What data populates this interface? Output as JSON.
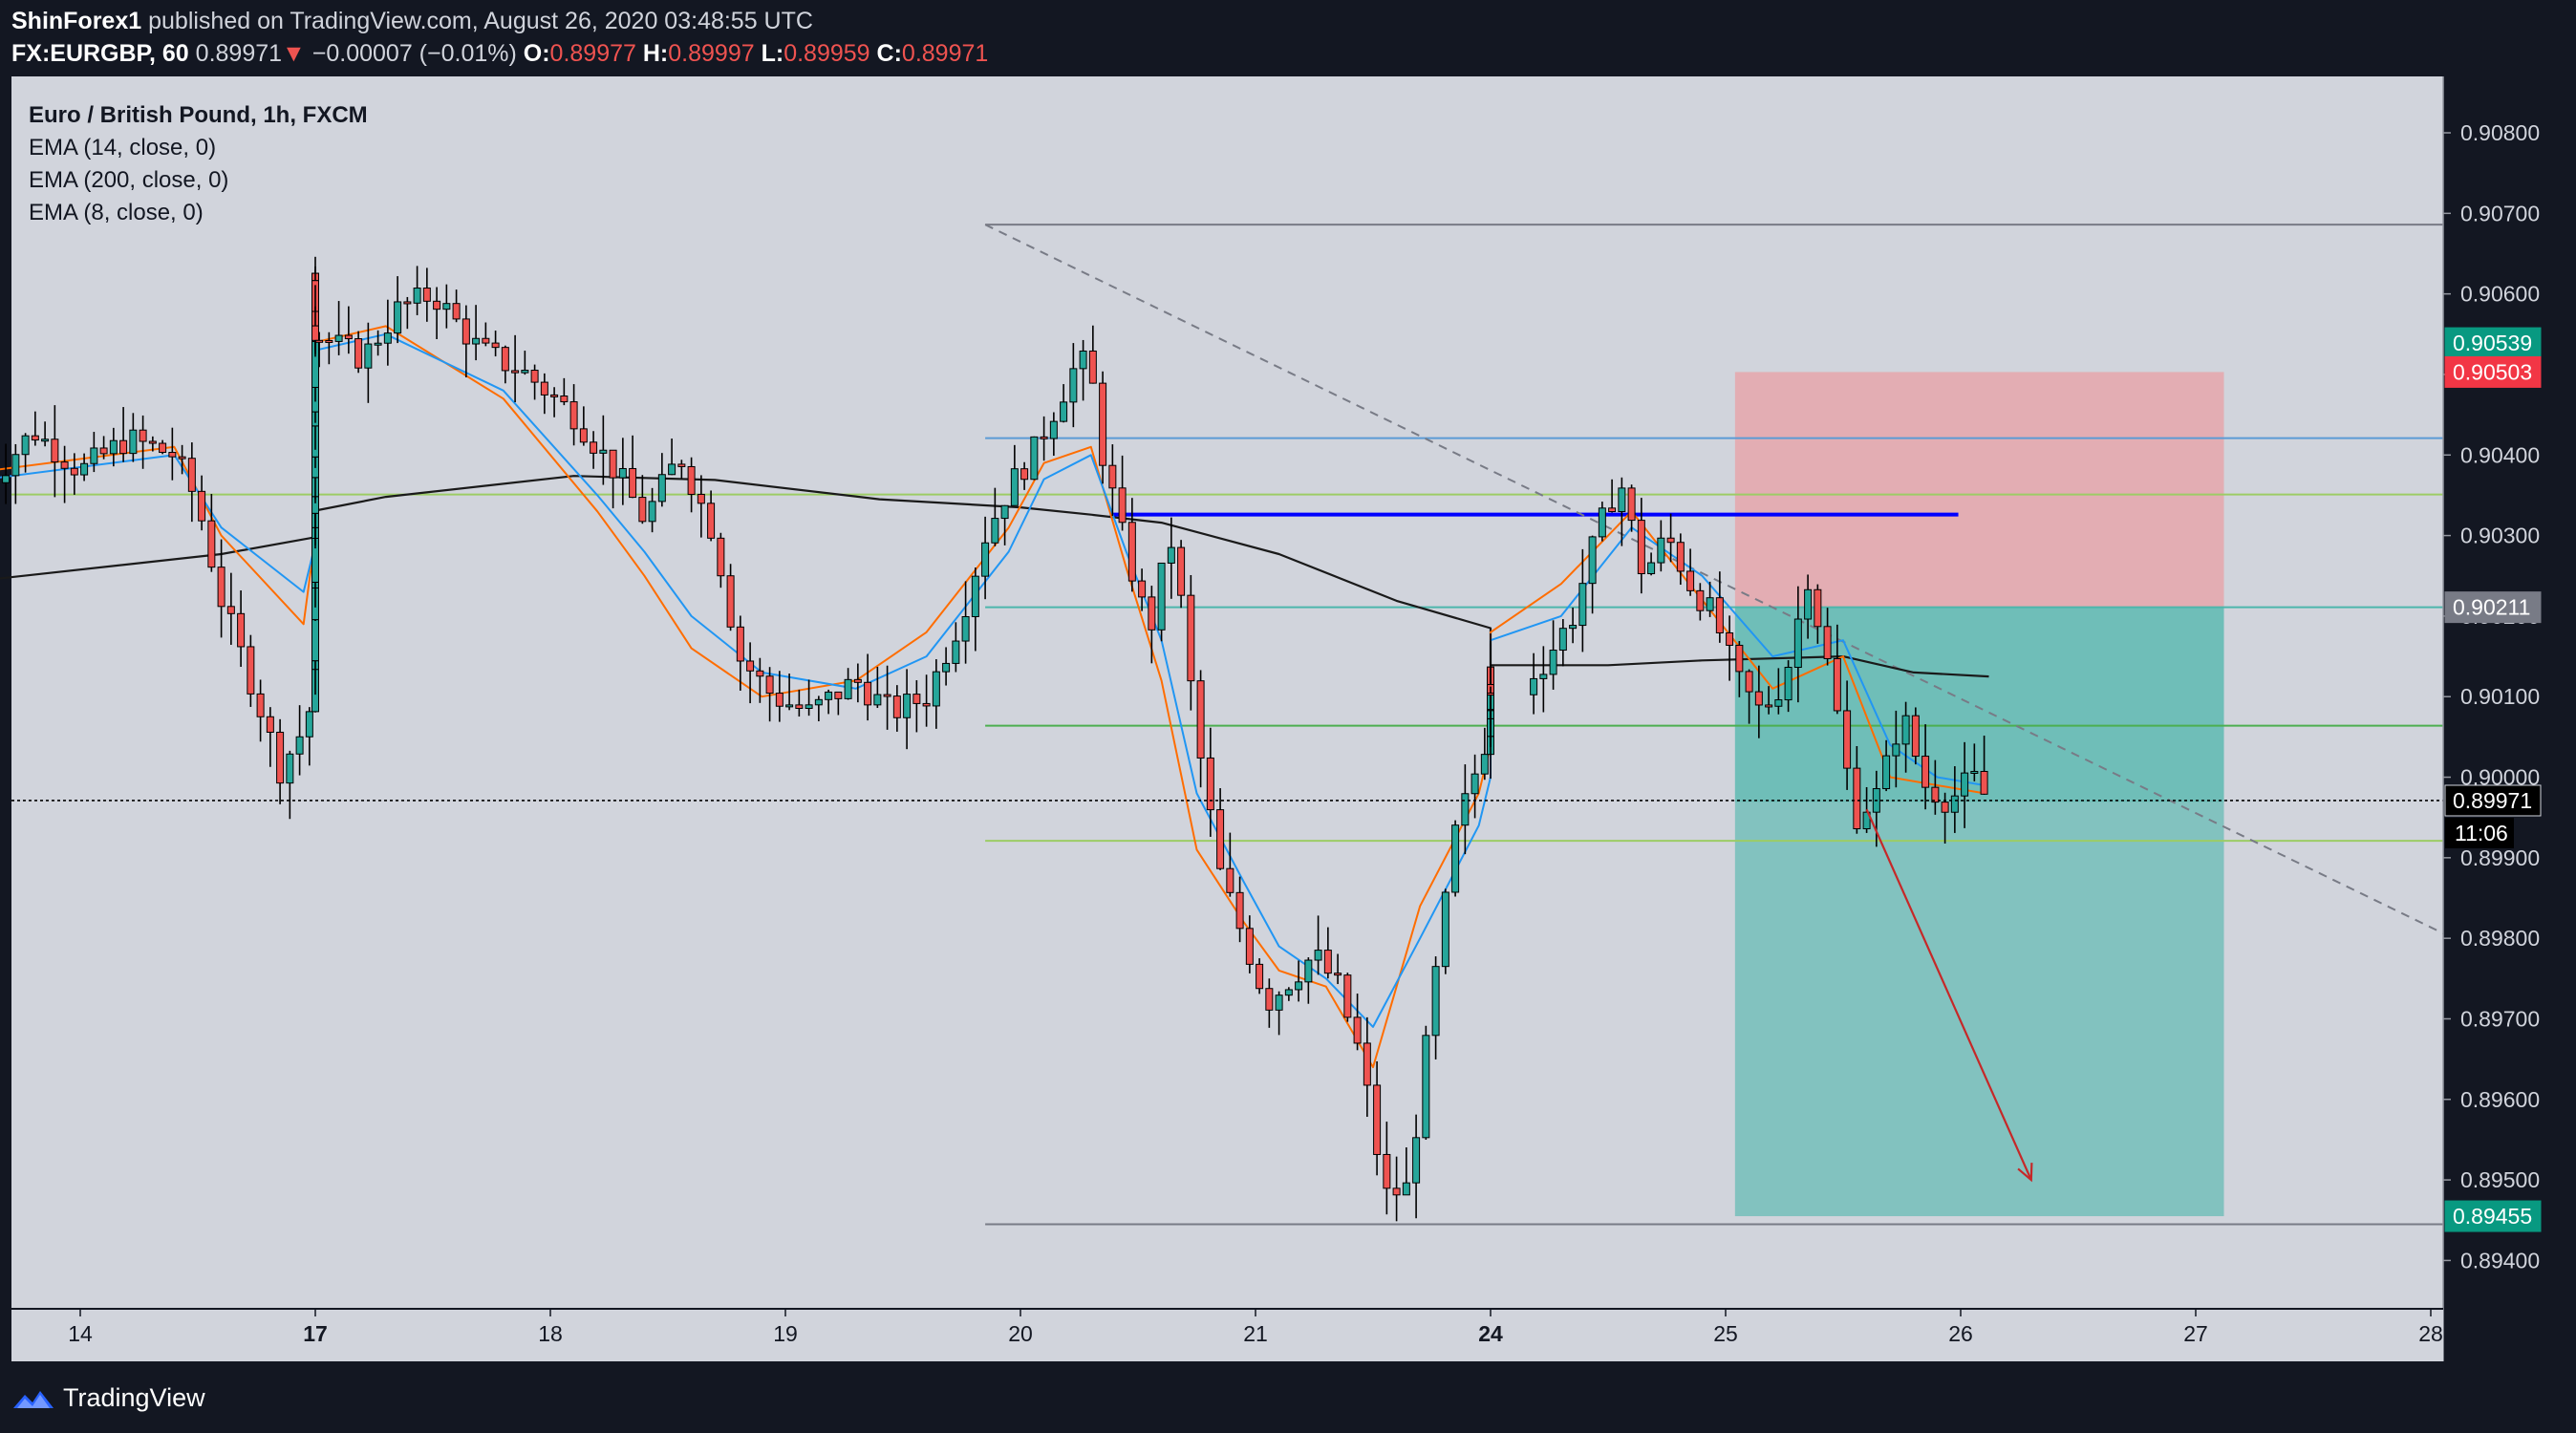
{
  "header": {
    "author": "ShinForex1",
    "published_text": " published on TradingView.com, August 26, 2020 03:48:55 UTC",
    "symbol": "FX:EURGBP, 60",
    "last": "0.89971",
    "arrow": "▼",
    "change": "−0.00007 (−0.01%)",
    "o_label": "O:",
    "o_value": "0.89977",
    "h_label": "H:",
    "h_value": "0.89997",
    "l_label": "L:",
    "l_value": "0.89959",
    "c_label": "C:",
    "c_value": "0.89971"
  },
  "legend": {
    "title": "Euro / British Pound, 1h, FXCM",
    "ind1": "EMA (14, close, 0)",
    "ind2": "EMA (200, close, 0)",
    "ind3": "EMA (8, close, 0)"
  },
  "footer": {
    "brand": "TradingView"
  },
  "colors": {
    "background": "#d1d4dc",
    "up": "#26a69a",
    "down": "#ef5350",
    "ema14": "#2196f3",
    "ema8": "#ff6d00",
    "ema200": "#1a1a1a",
    "stop_zone": "#e8a0a5",
    "target_zone": "#4db6ac",
    "blue_level": "#0000ff",
    "arrow": "#c62828"
  },
  "chart_data": {
    "type": "candlestick",
    "symbol": "EURGBP",
    "timeframe": "1h",
    "y_ticks": [
      0.908,
      0.907,
      0.906,
      0.905,
      0.904,
      0.903,
      0.902,
      0.901,
      0.9,
      0.899,
      0.898,
      0.897,
      0.896,
      0.895,
      0.894
    ],
    "y_tick_labels": [
      "0.90800",
      "0.90700",
      "0.90600",
      "0.90500",
      "0.90400",
      "0.90300",
      "0.90200",
      "0.90100",
      "0.90000",
      "0.89900",
      "0.89800",
      "0.89700",
      "0.89600",
      "0.89500",
      "0.89400"
    ],
    "ylim": [
      0.8934,
      0.9087
    ],
    "x_ticks": [
      {
        "label": "14",
        "day": 14,
        "bold": false
      },
      {
        "label": "17",
        "day": 17,
        "bold": true
      },
      {
        "label": "18",
        "day": 18,
        "bold": false
      },
      {
        "label": "19",
        "day": 19,
        "bold": false
      },
      {
        "label": "20",
        "day": 20,
        "bold": false
      },
      {
        "label": "21",
        "day": 21,
        "bold": false
      },
      {
        "label": "24",
        "day": 24,
        "bold": true
      },
      {
        "label": "25",
        "day": 25,
        "bold": false
      },
      {
        "label": "26",
        "day": 26,
        "bold": false
      },
      {
        "label": "27",
        "day": 27,
        "bold": false
      },
      {
        "label": "28",
        "day": 28,
        "bold": false
      }
    ],
    "price_badges": [
      {
        "label": "0.90539",
        "value": 0.90539,
        "color": "#089981"
      },
      {
        "label": "0.90503",
        "value": 0.90503,
        "color": "#f23645"
      },
      {
        "label": "0.90211",
        "value": 0.90211,
        "color": "#787b86"
      },
      {
        "label": "0.89971",
        "value": 0.89971,
        "color": "#000000"
      },
      {
        "label": "0.89455",
        "value": 0.89455,
        "color": "#089981"
      }
    ],
    "countdown": "11:06",
    "last_price": 0.89971,
    "horizontal_levels": [
      {
        "value": 0.90686,
        "from_day": 19.85,
        "to_day": 28.4,
        "color": "#787b86"
      },
      {
        "value": 0.90421,
        "from_day": 19.85,
        "to_day": 28.4,
        "color": "#5b9bd5"
      },
      {
        "value": 0.90351,
        "from_day": 0,
        "to_day": 28.4,
        "color": "#9ccc65"
      },
      {
        "value": 0.90211,
        "from_day": 19.85,
        "to_day": 28.4,
        "color": "#4db6ac"
      },
      {
        "value": 0.90064,
        "from_day": 19.85,
        "to_day": 28.4,
        "color": "#4caf50"
      },
      {
        "value": 0.89921,
        "from_day": 19.85,
        "to_day": 28.4,
        "color": "#9ccc65"
      },
      {
        "value": 0.89445,
        "from_day": 19.85,
        "to_day": 28.4,
        "color": "#787b86"
      }
    ],
    "blue_level": {
      "value": 0.90326,
      "from_day": 20.38,
      "to_day": 25.99
    },
    "trendline": {
      "from_day": 19.85,
      "from_value": 0.90686,
      "to_day": 28.9,
      "to_value": 0.89686
    },
    "position": {
      "entry": 0.90211,
      "stop": 0.90503,
      "target": 0.89455,
      "from_day": 25.04,
      "to_day": 27.12
    },
    "projection_arrow": {
      "from_day": 25.6,
      "from_value": 0.8996,
      "to_day": 26.3,
      "to_value": 0.895
    },
    "ema200": [
      [
        13.6,
        0.90245
      ],
      [
        14.6,
        0.90277
      ],
      [
        15.8,
        0.90298
      ],
      [
        16.8,
        0.90331
      ],
      [
        17.3,
        0.90348
      ],
      [
        18.1,
        0.90374
      ],
      [
        18.7,
        0.90369
      ],
      [
        19.4,
        0.90345
      ],
      [
        20.0,
        0.90335
      ],
      [
        20.3,
        0.90326
      ],
      [
        20.6,
        0.90316
      ],
      [
        21.1,
        0.90277
      ],
      [
        21.6,
        0.90219
      ],
      [
        22.3,
        0.90185
      ],
      [
        23.0,
        0.9016
      ],
      [
        24.0,
        0.90139
      ],
      [
        24.5,
        0.90139
      ],
      [
        24.9,
        0.90145
      ],
      [
        25.5,
        0.9015
      ],
      [
        25.8,
        0.9013
      ],
      [
        26.12,
        0.90125
      ]
    ],
    "ema14_points": [
      [
        13.6,
        0.9037
      ],
      [
        14.4,
        0.904
      ],
      [
        14.6,
        0.9031
      ],
      [
        14.95,
        0.9023
      ],
      [
        15.3,
        0.9029
      ],
      [
        15.6,
        0.9037
      ],
      [
        15.8,
        0.9044
      ],
      [
        16.2,
        0.9055
      ],
      [
        16.6,
        0.9057
      ],
      [
        17.0,
        0.9053
      ],
      [
        17.3,
        0.9055
      ],
      [
        17.8,
        0.9048
      ],
      [
        18.2,
        0.9035
      ],
      [
        18.4,
        0.9028
      ],
      [
        18.6,
        0.902
      ],
      [
        18.9,
        0.9013
      ],
      [
        19.3,
        0.9011
      ],
      [
        19.6,
        0.9015
      ],
      [
        19.95,
        0.9028
      ],
      [
        20.1,
        0.9037
      ],
      [
        20.3,
        0.904
      ],
      [
        20.45,
        0.9028
      ],
      [
        20.6,
        0.9017
      ],
      [
        20.75,
        0.8998
      ],
      [
        20.95,
        0.8987
      ],
      [
        21.1,
        0.8979
      ],
      [
        21.3,
        0.8975
      ],
      [
        21.5,
        0.8969
      ],
      [
        21.7,
        0.898
      ],
      [
        21.95,
        0.8994
      ],
      [
        22.1,
        0.9
      ],
      [
        22.3,
        0.9008
      ],
      [
        22.6,
        0.9012
      ],
      [
        22.9,
        0.9015
      ],
      [
        23.1,
        0.9017
      ],
      [
        24.3,
        0.902
      ],
      [
        24.6,
        0.9031
      ],
      [
        24.9,
        0.9025
      ],
      [
        25.2,
        0.9015
      ],
      [
        25.5,
        0.9017
      ],
      [
        25.7,
        0.9004
      ],
      [
        25.9,
        0.9
      ],
      [
        26.1,
        0.8999
      ]
    ],
    "ema8_points": [
      [
        13.6,
        0.9038
      ],
      [
        14.4,
        0.9041
      ],
      [
        14.6,
        0.903
      ],
      [
        14.95,
        0.9019
      ],
      [
        15.3,
        0.903
      ],
      [
        15.6,
        0.904
      ],
      [
        15.8,
        0.9047
      ],
      [
        16.2,
        0.9057
      ],
      [
        16.6,
        0.9059
      ],
      [
        17.0,
        0.9054
      ],
      [
        17.3,
        0.9056
      ],
      [
        17.8,
        0.9047
      ],
      [
        18.2,
        0.9033
      ],
      [
        18.4,
        0.9025
      ],
      [
        18.6,
        0.9016
      ],
      [
        18.9,
        0.901
      ],
      [
        19.3,
        0.9012
      ],
      [
        19.6,
        0.9018
      ],
      [
        19.95,
        0.9031
      ],
      [
        20.1,
        0.9039
      ],
      [
        20.3,
        0.9041
      ],
      [
        20.45,
        0.9026
      ],
      [
        20.6,
        0.9012
      ],
      [
        20.75,
        0.8991
      ],
      [
        20.95,
        0.8982
      ],
      [
        21.1,
        0.8976
      ],
      [
        21.3,
        0.8974
      ],
      [
        21.5,
        0.8964
      ],
      [
        21.7,
        0.8984
      ],
      [
        21.95,
        0.8998
      ],
      [
        22.1,
        0.9004
      ],
      [
        22.3,
        0.901
      ],
      [
        22.6,
        0.9013
      ],
      [
        22.9,
        0.9016
      ],
      [
        23.1,
        0.9018
      ],
      [
        24.3,
        0.9024
      ],
      [
        24.6,
        0.9033
      ],
      [
        24.9,
        0.9022
      ],
      [
        25.2,
        0.9011
      ],
      [
        25.5,
        0.9015
      ],
      [
        25.7,
        0.9
      ],
      [
        25.9,
        0.8999
      ],
      [
        26.1,
        0.8998
      ]
    ],
    "price_path": [
      [
        13.6,
        0.9036
      ],
      [
        13.8,
        0.9043
      ],
      [
        14.0,
        0.9038
      ],
      [
        14.2,
        0.9042
      ],
      [
        14.4,
        0.904
      ],
      [
        14.5,
        0.9034
      ],
      [
        14.6,
        0.9022
      ],
      [
        14.75,
        0.901
      ],
      [
        14.85,
        0.9001
      ],
      [
        14.95,
        0.9006
      ],
      [
        15.05,
        0.9015
      ],
      [
        15.2,
        0.9027
      ],
      [
        15.35,
        0.9036
      ],
      [
        15.5,
        0.904
      ],
      [
        15.6,
        0.9032
      ],
      [
        15.7,
        0.904
      ],
      [
        15.8,
        0.9046
      ],
      [
        15.95,
        0.9051
      ],
      [
        16.1,
        0.9058
      ],
      [
        16.2,
        0.9052
      ],
      [
        16.3,
        0.9047
      ],
      [
        16.4,
        0.9039
      ],
      [
        16.5,
        0.9048
      ],
      [
        16.6,
        0.9056
      ],
      [
        16.8,
        0.9062
      ],
      [
        17.0,
        0.9055
      ],
      [
        17.2,
        0.9052
      ],
      [
        17.35,
        0.9058
      ],
      [
        17.5,
        0.906
      ],
      [
        17.7,
        0.9053
      ],
      [
        17.9,
        0.905
      ],
      [
        18.1,
        0.9045
      ],
      [
        18.3,
        0.9037
      ],
      [
        18.4,
        0.9032
      ],
      [
        18.55,
        0.904
      ],
      [
        18.7,
        0.903
      ],
      [
        18.8,
        0.9015
      ],
      [
        18.95,
        0.901
      ],
      [
        19.1,
        0.9008
      ],
      [
        19.3,
        0.9012
      ],
      [
        19.45,
        0.9008
      ],
      [
        19.6,
        0.901
      ],
      [
        19.75,
        0.902
      ],
      [
        19.85,
        0.903
      ],
      [
        19.95,
        0.9036
      ],
      [
        20.05,
        0.904
      ],
      [
        20.15,
        0.9046
      ],
      [
        20.25,
        0.9052
      ],
      [
        20.3,
        0.905
      ],
      [
        20.35,
        0.904
      ],
      [
        20.45,
        0.9028
      ],
      [
        20.55,
        0.9018
      ],
      [
        20.6,
        0.9025
      ],
      [
        20.65,
        0.903
      ],
      [
        20.75,
        0.9005
      ],
      [
        20.85,
        0.8988
      ],
      [
        20.95,
        0.898
      ],
      [
        21.05,
        0.8972
      ],
      [
        21.15,
        0.8975
      ],
      [
        21.25,
        0.8978
      ],
      [
        21.35,
        0.8974
      ],
      [
        21.45,
        0.8965
      ],
      [
        21.55,
        0.8948
      ],
      [
        21.65,
        0.8949
      ],
      [
        21.75,
        0.8972
      ],
      [
        21.85,
        0.8993
      ],
      [
        21.95,
        0.9002
      ],
      [
        22.05,
        0.9011
      ],
      [
        22.15,
        0.9003
      ],
      [
        22.25,
        0.9013
      ],
      [
        22.35,
        0.9012
      ],
      [
        22.5,
        0.9011
      ],
      [
        22.7,
        0.9013
      ],
      [
        22.85,
        0.9008
      ],
      [
        23.0,
        0.9011
      ],
      [
        23.1,
        0.901
      ],
      [
        24.2,
        0.9013
      ],
      [
        24.35,
        0.902
      ],
      [
        24.45,
        0.903
      ],
      [
        24.55,
        0.9037
      ],
      [
        24.65,
        0.9025
      ],
      [
        24.75,
        0.903
      ],
      [
        24.85,
        0.9024
      ],
      [
        24.95,
        0.902
      ],
      [
        25.05,
        0.9012
      ],
      [
        25.15,
        0.9008
      ],
      [
        25.25,
        0.9012
      ],
      [
        25.35,
        0.9025
      ],
      [
        25.45,
        0.9012
      ],
      [
        25.55,
        0.8995
      ],
      [
        25.65,
        0.8998
      ],
      [
        25.75,
        0.9008
      ],
      [
        25.85,
        0.8999
      ],
      [
        25.95,
        0.8997
      ],
      [
        26.05,
        0.9
      ],
      [
        26.12,
        0.8997
      ]
    ],
    "last_candle": {
      "open": 0.89977,
      "high": 0.89997,
      "low": 0.89959,
      "close": 0.89971
    }
  }
}
